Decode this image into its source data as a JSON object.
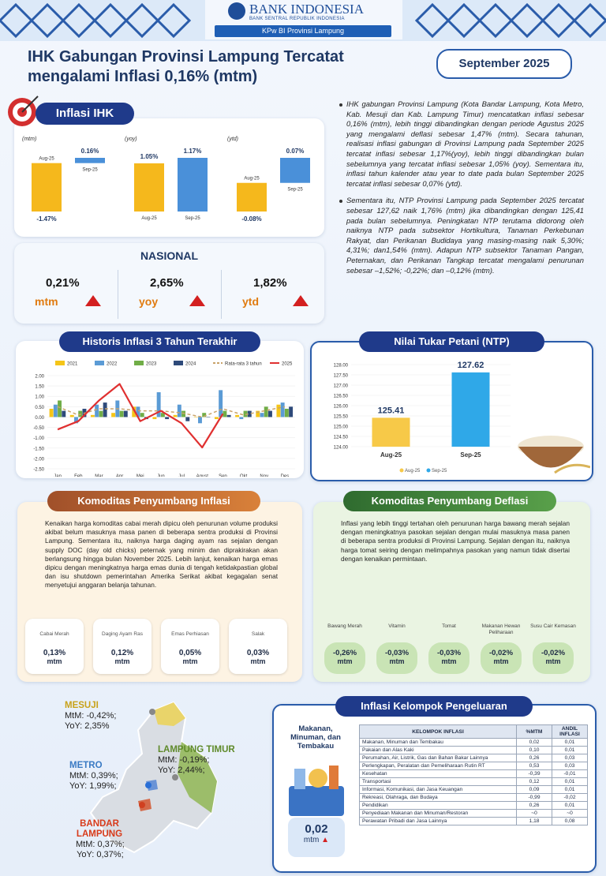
{
  "header": {
    "bank": "BANK INDONESIA",
    "bank_sub": "BANK SENTRAL REPUBLIK INDONESIA",
    "office": "KPw BI Provinsi Lampung"
  },
  "title": [
    "IHK Gabungan Provinsi Lampung Tercatat",
    "mengalami Inflasi 0,16% (mtm)"
  ],
  "date": "September 2025",
  "ihk": {
    "heading": "Inflasi IHK"
  },
  "chart_data": [
    {
      "type": "bar",
      "y_label": "(mtm)",
      "categories": [
        "Aug-25",
        "Sep-25"
      ],
      "values": [
        -1.47,
        0.16
      ],
      "value_labels": [
        "-1.47%",
        "0.16%"
      ],
      "colors": [
        "#f5b81c",
        "#4a90d9"
      ]
    },
    {
      "type": "bar",
      "y_label": "(yoy)",
      "categories": [
        "Aug-25",
        "Sep-25"
      ],
      "values": [
        1.05,
        1.17
      ],
      "value_labels": [
        "1.05%",
        "1.17%"
      ],
      "colors": [
        "#f5b81c",
        "#4a90d9"
      ]
    },
    {
      "type": "bar",
      "y_label": "(ytd)",
      "categories": [
        "Aug-25",
        "Sep-25"
      ],
      "values": [
        -0.08,
        0.07
      ],
      "value_labels": [
        "-0.08%",
        "0.07%"
      ],
      "colors": [
        "#f5b81c",
        "#4a90d9"
      ]
    },
    {
      "type": "bar",
      "title": "Historis Inflasi 3 Tahun Terakhir",
      "categories": [
        "Jan",
        "Feb",
        "Mar",
        "Apr",
        "Mei",
        "Jun",
        "Jul",
        "Agust",
        "Sep",
        "Okt",
        "Nov",
        "Des"
      ],
      "ylim": [
        -2.5,
        2.0
      ],
      "yticks": [
        {
          "value": 2.0,
          "label": "2.00"
        },
        {
          "value": 1.5,
          "label": "1.50"
        },
        {
          "value": 1.0,
          "label": "1.00"
        },
        {
          "value": 0.5,
          "label": "0.50"
        },
        {
          "value": 0,
          "label": "0.00"
        },
        {
          "value": -0.5,
          "label": "-0.50"
        },
        {
          "value": -1.0,
          "label": "-1.00"
        },
        {
          "value": -1.5,
          "label": "-1.50"
        },
        {
          "value": -2.0,
          "label": "-2.00"
        },
        {
          "value": -2.5,
          "label": "-2.50"
        }
      ],
      "series": [
        {
          "name": "2021",
          "color": "#f5c518",
          "values": [
            0.4,
            0.1,
            0.1,
            0.2,
            0.5,
            -0.1,
            0.1,
            0.0,
            -0.1,
            0.1,
            0.3,
            0.6
          ]
        },
        {
          "name": "2022",
          "color": "#5b9bd5",
          "values": [
            0.6,
            -0.3,
            0.6,
            0.8,
            0.5,
            1.2,
            0.6,
            -0.3,
            1.3,
            -0.1,
            0.2,
            0.7
          ]
        },
        {
          "name": "2023",
          "color": "#70ad47",
          "values": [
            0.8,
            0.3,
            0.3,
            0.3,
            0.2,
            0.2,
            0.3,
            0.2,
            0.3,
            0.3,
            0.5,
            0.4
          ]
        },
        {
          "name": "2024",
          "color": "#2e4a7a",
          "values": [
            0.3,
            0.4,
            0.7,
            0.3,
            -0.1,
            -0.1,
            -0.2,
            0.0,
            0.1,
            0.3,
            0.3,
            0.5
          ]
        },
        {
          "name": "Rata-rata 3 tahun",
          "type": "line",
          "dashed": true,
          "color": "#c9a36a",
          "values": [
            0.5,
            0.1,
            0.4,
            0.4,
            0.3,
            0.3,
            0.2,
            0.0,
            0.4,
            0.1,
            0.3,
            0.5
          ]
        },
        {
          "name": "2025",
          "type": "line",
          "color": "#e03030",
          "values": [
            -0.6,
            -0.2,
            0.8,
            1.6,
            -0.2,
            0.3,
            -0.3,
            -1.47,
            0.16,
            null,
            null,
            null
          ]
        }
      ]
    },
    {
      "type": "bar",
      "title": "Nilai Tukar Petani (NTP)",
      "categories": [
        "Aug-25",
        "Sep-25"
      ],
      "values": [
        125.41,
        127.62
      ],
      "colors": [
        "#f7c948",
        "#2fa8e8"
      ],
      "ylim": [
        124,
        128
      ],
      "yticks": [
        {
          "value": 124,
          "label": "124.00"
        },
        {
          "value": 124.5,
          "label": "124.50"
        },
        {
          "value": 125,
          "label": "125.00"
        },
        {
          "value": 125.5,
          "label": "125.50"
        },
        {
          "value": 126,
          "label": "126.00"
        },
        {
          "value": 126.5,
          "label": "126.50"
        },
        {
          "value": 127,
          "label": "127.00"
        },
        {
          "value": 127.5,
          "label": "127.50"
        },
        {
          "value": 128,
          "label": "128.00"
        }
      ]
    }
  ],
  "nasional": {
    "heading": "NASIONAL",
    "items": [
      {
        "value": "0,21%",
        "label": "mtm"
      },
      {
        "value": "2,65%",
        "label": "yoy"
      },
      {
        "value": "1,82%",
        "label": "ytd"
      }
    ]
  },
  "bullets": [
    "IHK gabungan Provinsi Lampung (Kota Bandar Lampung, Kota Metro, Kab. Mesuji dan Kab. Lampung Timur) mencatatkan inflasi sebesar 0,16% (mtm), lebih tinggi dibandingkan dengan periode Agustus 2025 yang mengalami deflasi sebesar 1,47% (mtm). Secara tahunan, realisasi inflasi gabungan di Provinsi Lampung pada September 2025 tercatat inflasi sebesar 1,17%(yoy), lebih tinggi dibandingkan bulan sebelumnya yang tercatat inflasi sebesar 1,05% (yoy). Sementara itu, inflasi tahun kalender atau year to date pada bulan September 2025 tercatat inflasi sebesar 0,07% (ytd).",
    "Sementara itu, NTP Provinsi Lampung pada September 2025 tercatat sebesar 127,62 naik 1,76% (mtm) jika dibandingkan dengan 125,41 pada bulan sebelumnya. Peningkatan NTP terutama didorong oleh naiknya NTP pada subsektor Hortikultura, Tanaman Perkebunan Rakyat, dan Perikanan Budidaya yang masing-masing naik 5,30%; 4,31%; dan1,54% (mtm). Adapun NTP subsektor Tanaman Pangan, Peternakan, dan Perikanan Tangkap tercatat mengalami penurunan sebesar –1,52%; -0,22%; dan –0,12% (mtm)."
  ],
  "komoditas_inflasi": {
    "heading": "Komoditas Penyumbang Inflasi",
    "text": "Kenaikan harga komoditas cabai merah dipicu oleh penurunan volume produksi akibat belum masuknya masa panen di beberapa sentra produksi di Provinsi Lampung. Sementara itu, naiknya harga daging ayam ras sejalan dengan supply DOC (day old chicks) peternak yang minim dan diprakirakan akan berlangsung hingga bulan November 2025. Lebih lanjut, kenaikan harga emas dipicu dengan meningkatnya harga emas dunia di tengah ketidakpastian global dan isu shutdown pemerintahan Amerika Serikat akibat kegagalan senat menyetujui anggaran belanja tahunan.",
    "items": [
      {
        "name": "Cabai Merah",
        "value": "0,13%",
        "unit": "mtm"
      },
      {
        "name": "Daging Ayam Ras",
        "value": "0,12%",
        "unit": "mtm"
      },
      {
        "name": "Emas Perhiasan",
        "value": "0,05%",
        "unit": "mtm"
      },
      {
        "name": "Salak",
        "value": "0,03%",
        "unit": "mtm"
      }
    ]
  },
  "komoditas_deflasi": {
    "heading": "Komoditas Penyumbang Deflasi",
    "text": "Inflasi yang lebih tinggi tertahan oleh penurunan harga bawang merah sejalan dengan meningkatnya pasokan sejalan dengan mulai masuknya masa panen di beberapa sentra produksi di Provinsi Lampung. Sejalan dengan itu, naiknya harga tomat seiring dengan melimpahnya pasokan yang namun tidak disertai dengan kenaikan permintaan.",
    "items": [
      {
        "name": "Bawang Merah",
        "value": "-0,26%",
        "unit": "mtm"
      },
      {
        "name": "Vitamin",
        "value": "-0,03%",
        "unit": "mtm"
      },
      {
        "name": "Tomat",
        "value": "-0,03%",
        "unit": "mtm"
      },
      {
        "name": "Makanan Hewan Peliharaan",
        "value": "-0,02%",
        "unit": "mtm"
      },
      {
        "name": "Susu Cair Kemasan",
        "value": "-0,02%",
        "unit": "mtm"
      }
    ]
  },
  "map": {
    "regions": [
      {
        "name": "MESUJI",
        "mtm": "MtM: -0,42%;",
        "yoy": "YoY: 2,35%"
      },
      {
        "name": "LAMPUNG TIMUR",
        "mtm": "MtM: -0,19%;",
        "yoy": "YoY: 2,44%;"
      },
      {
        "name": "METRO",
        "mtm": "MtM: 0,39%;",
        "yoy": "YoY: 1,99%;"
      },
      {
        "name": "BANDAR LAMPUNG",
        "mtm": "MtM: 0,37%;",
        "yoy": "YoY: 0,37%;"
      }
    ]
  },
  "kelompok": {
    "heading": "Inflasi Kelompok Pengeluaran",
    "highlight": {
      "label": "Makanan, Minuman, dan Tembakau",
      "value": "0,02",
      "unit": "mtm"
    },
    "table": {
      "headers": [
        "KELOMPOK INFLASI",
        "%MTM",
        "ANDIL INFLASI"
      ],
      "rows": [
        [
          "Makanan, Minuman dan Tembakau",
          "0,02",
          "0,01"
        ],
        [
          "Pakaian dan Alas Kaki",
          "0,10",
          "0,01"
        ],
        [
          "Perumahan, Air, Listrik, Gas dan Bahan Bakar Lainnya",
          "0,26",
          "0,03"
        ],
        [
          "Perlengkapan, Peralatan dan Pemeliharaan Rutin RT",
          "0,53",
          "0,03"
        ],
        [
          "Kesehatan",
          "-0,39",
          "-0,01"
        ],
        [
          "Transportasi",
          "0,12",
          "0,01"
        ],
        [
          "Informasi, Komunikasi, dan Jasa Keuangan",
          "0,09",
          "0,01"
        ],
        [
          "Rekreasi, Olahraga, dan Budaya",
          "-0,99",
          "-0,02"
        ],
        [
          "Pendidikan",
          "0,26",
          "0,01"
        ],
        [
          "Penyediaan Makanan dan Minuman/Restoran",
          "~0",
          "~0"
        ],
        [
          "Perawatan Pribadi dan Jasa Lainnya",
          "1,18",
          "0,08"
        ]
      ]
    }
  }
}
